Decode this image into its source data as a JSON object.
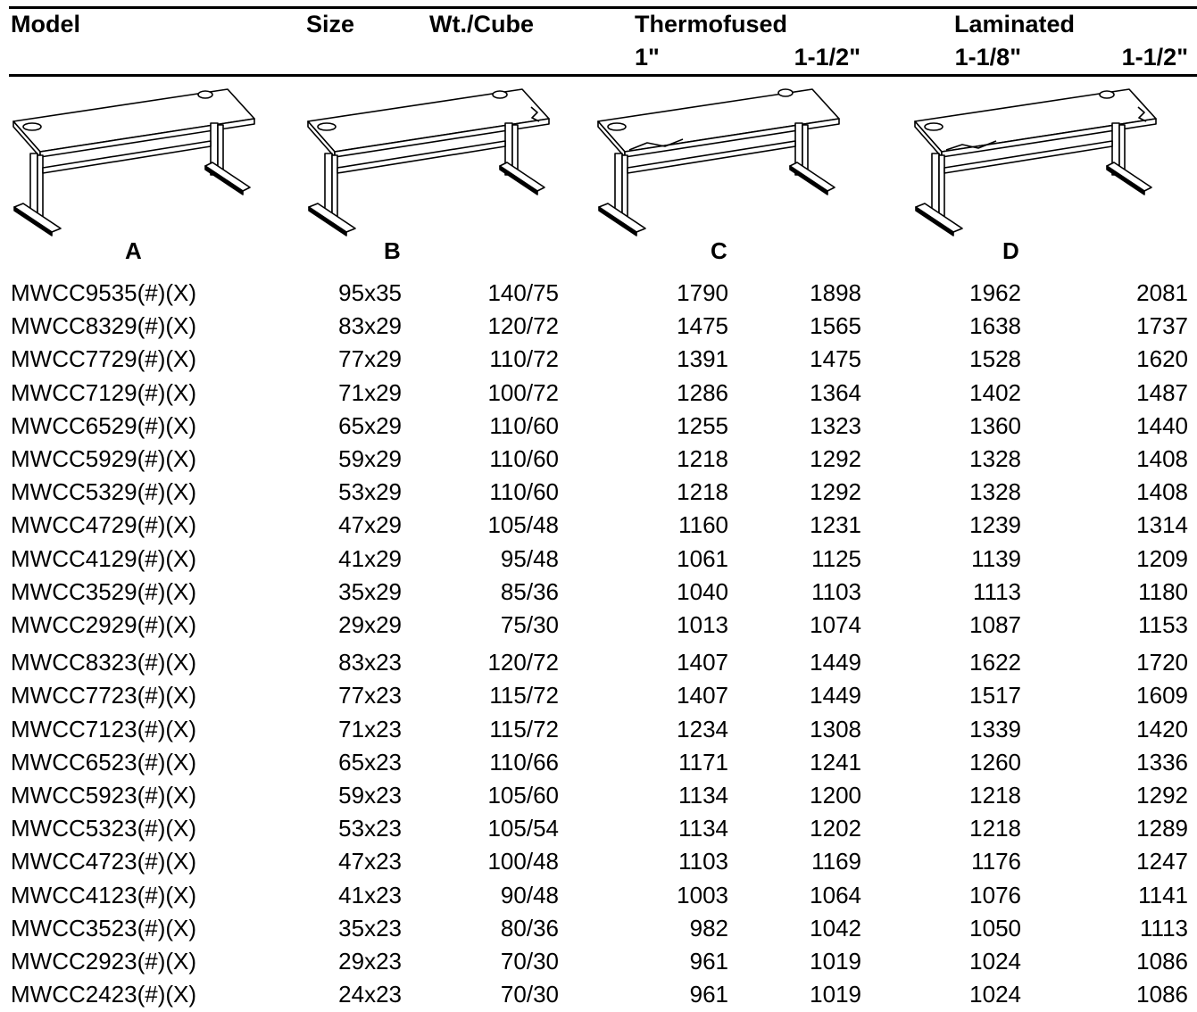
{
  "header": {
    "model": "Model",
    "size": "Size",
    "wt_cube": "Wt./Cube",
    "thermofused": "Thermofused",
    "laminated": "Laminated",
    "thermo_1": "1\"",
    "thermo_2": "1-1/2\"",
    "lam_1": "1-1/8\"",
    "lam_2": "1-1/2\""
  },
  "illustrations": [
    {
      "label": "A",
      "icon": "desk-icon"
    },
    {
      "label": "B",
      "icon": "desk-icon"
    },
    {
      "label": "C",
      "icon": "desk-icon"
    },
    {
      "label": "D",
      "icon": "desk-icon"
    }
  ],
  "rows": [
    {
      "model": "MWCC9535(#)(X)",
      "size": "95x35",
      "wt": "140/75",
      "t1": "1790",
      "t2": "1898",
      "l1": "1962",
      "l2": "2081"
    },
    {
      "model": "MWCC8329(#)(X)",
      "size": "83x29",
      "wt": "120/72",
      "t1": "1475",
      "t2": "1565",
      "l1": "1638",
      "l2": "1737"
    },
    {
      "model": "MWCC7729(#)(X)",
      "size": "77x29",
      "wt": "110/72",
      "t1": "1391",
      "t2": "1475",
      "l1": "1528",
      "l2": "1620"
    },
    {
      "model": "MWCC7129(#)(X)",
      "size": "71x29",
      "wt": "100/72",
      "t1": "1286",
      "t2": "1364",
      "l1": "1402",
      "l2": "1487"
    },
    {
      "model": "MWCC6529(#)(X)",
      "size": "65x29",
      "wt": "110/60",
      "t1": "1255",
      "t2": "1323",
      "l1": "1360",
      "l2": "1440"
    },
    {
      "model": "MWCC5929(#)(X)",
      "size": "59x29",
      "wt": "110/60",
      "t1": "1218",
      "t2": "1292",
      "l1": "1328",
      "l2": "1408"
    },
    {
      "model": "MWCC5329(#)(X)",
      "size": "53x29",
      "wt": "110/60",
      "t1": "1218",
      "t2": "1292",
      "l1": "1328",
      "l2": "1408"
    },
    {
      "model": "MWCC4729(#)(X)",
      "size": "47x29",
      "wt": "105/48",
      "t1": "1160",
      "t2": "1231",
      "l1": "1239",
      "l2": "1314"
    },
    {
      "model": "MWCC4129(#)(X)",
      "size": "41x29",
      "wt": "95/48",
      "t1": "1061",
      "t2": "1125",
      "l1": "1139",
      "l2": "1209"
    },
    {
      "model": "MWCC3529(#)(X)",
      "size": "35x29",
      "wt": "85/36",
      "t1": "1040",
      "t2": "1103",
      "l1": "1113",
      "l2": "1180"
    },
    {
      "model": "MWCC2929(#)(X)",
      "size": "29x29",
      "wt": "75/30",
      "t1": "1013",
      "t2": "1074",
      "l1": "1087",
      "l2": "1153"
    },
    {
      "model": "MWCC8323(#)(X)",
      "size": "83x23",
      "wt": "120/72",
      "t1": "1407",
      "t2": "1449",
      "l1": "1622",
      "l2": "1720"
    },
    {
      "model": "MWCC7723(#)(X)",
      "size": "77x23",
      "wt": "115/72",
      "t1": "1407",
      "t2": "1449",
      "l1": "1517",
      "l2": "1609"
    },
    {
      "model": "MWCC7123(#)(X)",
      "size": "71x23",
      "wt": "115/72",
      "t1": "1234",
      "t2": "1308",
      "l1": "1339",
      "l2": "1420"
    },
    {
      "model": "MWCC6523(#)(X)",
      "size": "65x23",
      "wt": "110/66",
      "t1": "1171",
      "t2": "1241",
      "l1": "1260",
      "l2": "1336"
    },
    {
      "model": "MWCC5923(#)(X)",
      "size": "59x23",
      "wt": "105/60",
      "t1": "1134",
      "t2": "1200",
      "l1": "1218",
      "l2": "1292"
    },
    {
      "model": "MWCC5323(#)(X)",
      "size": "53x23",
      "wt": "105/54",
      "t1": "1134",
      "t2": "1202",
      "l1": "1218",
      "l2": "1289"
    },
    {
      "model": "MWCC4723(#)(X)",
      "size": "47x23",
      "wt": "100/48",
      "t1": "1103",
      "t2": "1169",
      "l1": "1176",
      "l2": "1247"
    },
    {
      "model": "MWCC4123(#)(X)",
      "size": "41x23",
      "wt": "90/48",
      "t1": "1003",
      "t2": "1064",
      "l1": "1076",
      "l2": "1141"
    },
    {
      "model": "MWCC3523(#)(X)",
      "size": "35x23",
      "wt": "80/36",
      "t1": "982",
      "t2": "1042",
      "l1": "1050",
      "l2": "1113"
    },
    {
      "model": "MWCC2923(#)(X)",
      "size": "29x23",
      "wt": "70/30",
      "t1": "961",
      "t2": "1019",
      "l1": "1024",
      "l2": "1086"
    },
    {
      "model": "MWCC2423(#)(X)",
      "size": "24x23",
      "wt": "70/30",
      "t1": "961",
      "t2": "1019",
      "l1": "1024",
      "l2": "1086"
    }
  ]
}
